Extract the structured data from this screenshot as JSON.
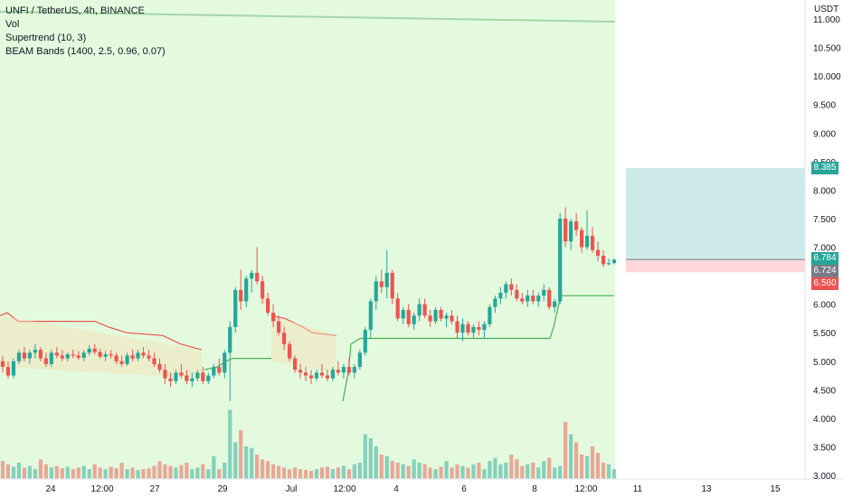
{
  "header": {
    "symbol_line": "UNFI / TetherUS, 4h, BINANCE",
    "indicators": [
      "Vol",
      "Supertrend (10, 3)",
      "BEAM Bands (1400, 2.5, 0.96, 0.07)"
    ]
  },
  "price_axis": {
    "currency": "USDT",
    "labels": [
      "11.000",
      "10.500",
      "10.000",
      "9.500",
      "9.000",
      "8.500",
      "8.000",
      "7.500",
      "7.000",
      "6.500",
      "6.000",
      "5.500",
      "5.000",
      "4.500",
      "4.000",
      "3.500",
      "3.000"
    ]
  },
  "price_tags": [
    {
      "value": "8.385",
      "color": "#26a69a"
    },
    {
      "value": "6.784",
      "color": "#26a69a"
    },
    {
      "value": "6.724",
      "color": "#787b86"
    },
    {
      "value": "6.560",
      "color": "#ef5350"
    }
  ],
  "time_axis": {
    "labels": [
      "24",
      "12:00",
      "27",
      "29",
      "Jul",
      "12:00",
      "4",
      "6",
      "8",
      "12:00",
      "11",
      "13",
      "15"
    ]
  },
  "position_tool": {
    "target": 8.385,
    "entry": 6.784,
    "stop": 6.56
  },
  "colors": {
    "up": "#26a69a",
    "down": "#ef5350",
    "band_fill": "#ccf5c2",
    "band_line": "#a5d6a7",
    "supertrend_up": "#4caf50",
    "supertrend_down": "#ef5350",
    "profit_zone": "#b2dfdb",
    "loss_zone": "#ffcdd2"
  },
  "chart_data": {
    "type": "candlestick",
    "symbol": "UNFI / TetherUS",
    "interval": "4h",
    "exchange": "BINANCE",
    "ylim": [
      3.0,
      11.3
    ],
    "price_axis_labels": [
      11.0,
      10.5,
      10.0,
      9.5,
      9.0,
      8.5,
      8.0,
      7.5,
      7.0,
      6.5,
      6.0,
      5.5,
      5.0,
      4.5,
      4.0,
      3.5,
      3.0
    ],
    "x_labels": [
      "24",
      "12:00",
      "27",
      "29",
      "Jul",
      "12:00",
      "4",
      "6",
      "8",
      "12:00",
      "11",
      "13",
      "15"
    ],
    "last_price": 6.724,
    "candles_approx": [
      [
        5.0,
        5.1,
        4.8,
        4.9
      ],
      [
        4.9,
        5.0,
        4.7,
        4.75
      ],
      [
        4.75,
        5.05,
        4.7,
        5.0
      ],
      [
        5.0,
        5.2,
        4.95,
        5.15
      ],
      [
        5.15,
        5.25,
        5.0,
        5.05
      ],
      [
        5.05,
        5.2,
        4.95,
        5.15
      ],
      [
        5.15,
        5.3,
        5.05,
        5.2
      ],
      [
        5.2,
        5.25,
        5.0,
        5.05
      ],
      [
        5.05,
        5.15,
        4.9,
        4.95
      ],
      [
        4.95,
        5.2,
        4.9,
        5.15
      ],
      [
        5.15,
        5.25,
        5.05,
        5.1
      ],
      [
        5.1,
        5.2,
        5.0,
        5.05
      ],
      [
        5.05,
        5.15,
        5.0,
        5.12
      ],
      [
        5.12,
        5.2,
        5.05,
        5.1
      ],
      [
        5.1,
        5.18,
        5.02,
        5.06
      ],
      [
        5.06,
        5.2,
        5.0,
        5.15
      ],
      [
        5.15,
        5.28,
        5.1,
        5.22
      ],
      [
        5.22,
        5.3,
        5.12,
        5.16
      ],
      [
        5.16,
        5.22,
        5.05,
        5.08
      ],
      [
        5.08,
        5.18,
        5.0,
        5.12
      ],
      [
        5.12,
        5.2,
        5.05,
        5.1
      ],
      [
        5.1,
        5.15,
        4.95,
        5.0
      ],
      [
        5.0,
        5.1,
        4.9,
        4.95
      ],
      [
        4.95,
        5.15,
        4.92,
        5.1
      ],
      [
        5.1,
        5.2,
        5.0,
        5.05
      ],
      [
        5.05,
        5.2,
        5.0,
        5.15
      ],
      [
        5.15,
        5.25,
        5.05,
        5.1
      ],
      [
        5.1,
        5.2,
        5.0,
        5.05
      ],
      [
        5.05,
        5.15,
        4.9,
        4.95
      ],
      [
        4.95,
        5.05,
        4.8,
        4.85
      ],
      [
        4.85,
        4.95,
        4.6,
        4.7
      ],
      [
        4.7,
        4.8,
        4.55,
        4.65
      ],
      [
        4.65,
        4.85,
        4.6,
        4.8
      ],
      [
        4.8,
        4.95,
        4.7,
        4.75
      ],
      [
        4.75,
        4.85,
        4.6,
        4.65
      ],
      [
        4.65,
        4.8,
        4.55,
        4.7
      ],
      [
        4.7,
        4.85,
        4.65,
        4.8
      ],
      [
        4.8,
        4.9,
        4.6,
        4.65
      ],
      [
        4.65,
        4.8,
        4.6,
        4.75
      ],
      [
        4.75,
        4.95,
        4.7,
        4.9
      ],
      [
        4.9,
        5.05,
        4.75,
        4.8
      ],
      [
        4.8,
        5.2,
        4.7,
        5.15
      ],
      [
        5.15,
        5.7,
        4.3,
        5.6
      ],
      [
        5.6,
        6.3,
        5.5,
        6.25
      ],
      [
        6.25,
        6.6,
        5.9,
        6.05
      ],
      [
        6.05,
        6.5,
        5.95,
        6.45
      ],
      [
        6.45,
        6.6,
        6.2,
        6.55
      ],
      [
        6.55,
        7.0,
        6.35,
        6.4
      ],
      [
        6.4,
        6.5,
        6.0,
        6.1
      ],
      [
        6.1,
        6.2,
        5.8,
        5.85
      ],
      [
        5.85,
        6.0,
        5.6,
        5.7
      ],
      [
        5.7,
        5.8,
        5.45,
        5.5
      ],
      [
        5.5,
        5.6,
        5.2,
        5.3
      ],
      [
        5.3,
        5.35,
        5.0,
        5.05
      ],
      [
        5.05,
        5.1,
        4.8,
        4.85
      ],
      [
        4.85,
        4.95,
        4.7,
        4.8
      ],
      [
        4.8,
        4.9,
        4.65,
        4.75
      ],
      [
        4.75,
        4.85,
        4.6,
        4.7
      ],
      [
        4.7,
        4.85,
        4.65,
        4.8
      ],
      [
        4.8,
        4.95,
        4.7,
        4.75
      ],
      [
        4.75,
        4.85,
        4.65,
        4.7
      ],
      [
        4.7,
        4.9,
        4.65,
        4.85
      ],
      [
        4.85,
        5.0,
        4.75,
        4.8
      ],
      [
        4.8,
        4.95,
        4.7,
        4.9
      ],
      [
        4.9,
        5.05,
        4.75,
        4.8
      ],
      [
        4.8,
        4.95,
        4.7,
        4.9
      ],
      [
        4.9,
        5.2,
        4.85,
        5.15
      ],
      [
        5.15,
        5.6,
        5.1,
        5.55
      ],
      [
        5.55,
        6.1,
        5.4,
        6.05
      ],
      [
        6.05,
        6.5,
        5.9,
        6.4
      ],
      [
        6.4,
        6.6,
        6.2,
        6.3
      ],
      [
        6.3,
        6.95,
        6.1,
        6.55
      ],
      [
        6.55,
        6.6,
        6.0,
        6.1
      ],
      [
        6.1,
        6.2,
        5.7,
        5.75
      ],
      [
        5.75,
        5.95,
        5.65,
        5.9
      ],
      [
        5.9,
        6.0,
        5.6,
        5.65
      ],
      [
        5.65,
        5.85,
        5.55,
        5.8
      ],
      [
        5.8,
        6.1,
        5.7,
        6.0
      ],
      [
        6.0,
        6.1,
        5.75,
        5.8
      ],
      [
        5.8,
        5.9,
        5.6,
        5.7
      ],
      [
        5.7,
        5.95,
        5.65,
        5.9
      ],
      [
        5.9,
        5.95,
        5.7,
        5.75
      ],
      [
        5.75,
        5.85,
        5.6,
        5.8
      ],
      [
        5.8,
        5.9,
        5.65,
        5.7
      ],
      [
        5.7,
        5.8,
        5.4,
        5.5
      ],
      [
        5.5,
        5.75,
        5.35,
        5.65
      ],
      [
        5.65,
        5.7,
        5.45,
        5.5
      ],
      [
        5.5,
        5.65,
        5.4,
        5.6
      ],
      [
        5.6,
        5.7,
        5.45,
        5.55
      ],
      [
        5.55,
        5.7,
        5.4,
        5.65
      ],
      [
        5.65,
        6.0,
        5.6,
        5.95
      ],
      [
        5.95,
        6.15,
        5.85,
        6.1
      ],
      [
        6.1,
        6.3,
        6.0,
        6.2
      ],
      [
        6.2,
        6.4,
        6.1,
        6.35
      ],
      [
        6.35,
        6.45,
        6.15,
        6.25
      ],
      [
        6.25,
        6.35,
        6.05,
        6.1
      ],
      [
        6.1,
        6.2,
        6.0,
        6.05
      ],
      [
        6.05,
        6.25,
        5.95,
        6.15
      ],
      [
        6.15,
        6.25,
        6.0,
        6.05
      ],
      [
        6.05,
        6.2,
        5.95,
        6.15
      ],
      [
        6.15,
        6.35,
        6.05,
        6.25
      ],
      [
        6.25,
        6.3,
        5.9,
        5.95
      ],
      [
        5.95,
        6.1,
        5.85,
        6.05
      ],
      [
        6.05,
        7.6,
        6.0,
        7.5
      ],
      [
        7.5,
        7.7,
        7.0,
        7.1
      ],
      [
        7.1,
        7.5,
        6.95,
        7.45
      ],
      [
        7.45,
        7.6,
        7.2,
        7.3
      ],
      [
        7.3,
        7.35,
        6.9,
        7.0
      ],
      [
        7.0,
        7.65,
        6.95,
        7.2
      ],
      [
        7.2,
        7.35,
        6.9,
        6.95
      ],
      [
        6.95,
        7.1,
        6.75,
        6.85
      ],
      [
        6.85,
        6.95,
        6.65,
        6.7
      ],
      [
        6.7,
        6.8,
        6.68,
        6.72
      ],
      [
        6.72,
        6.8,
        6.7,
        6.78
      ]
    ]
  }
}
